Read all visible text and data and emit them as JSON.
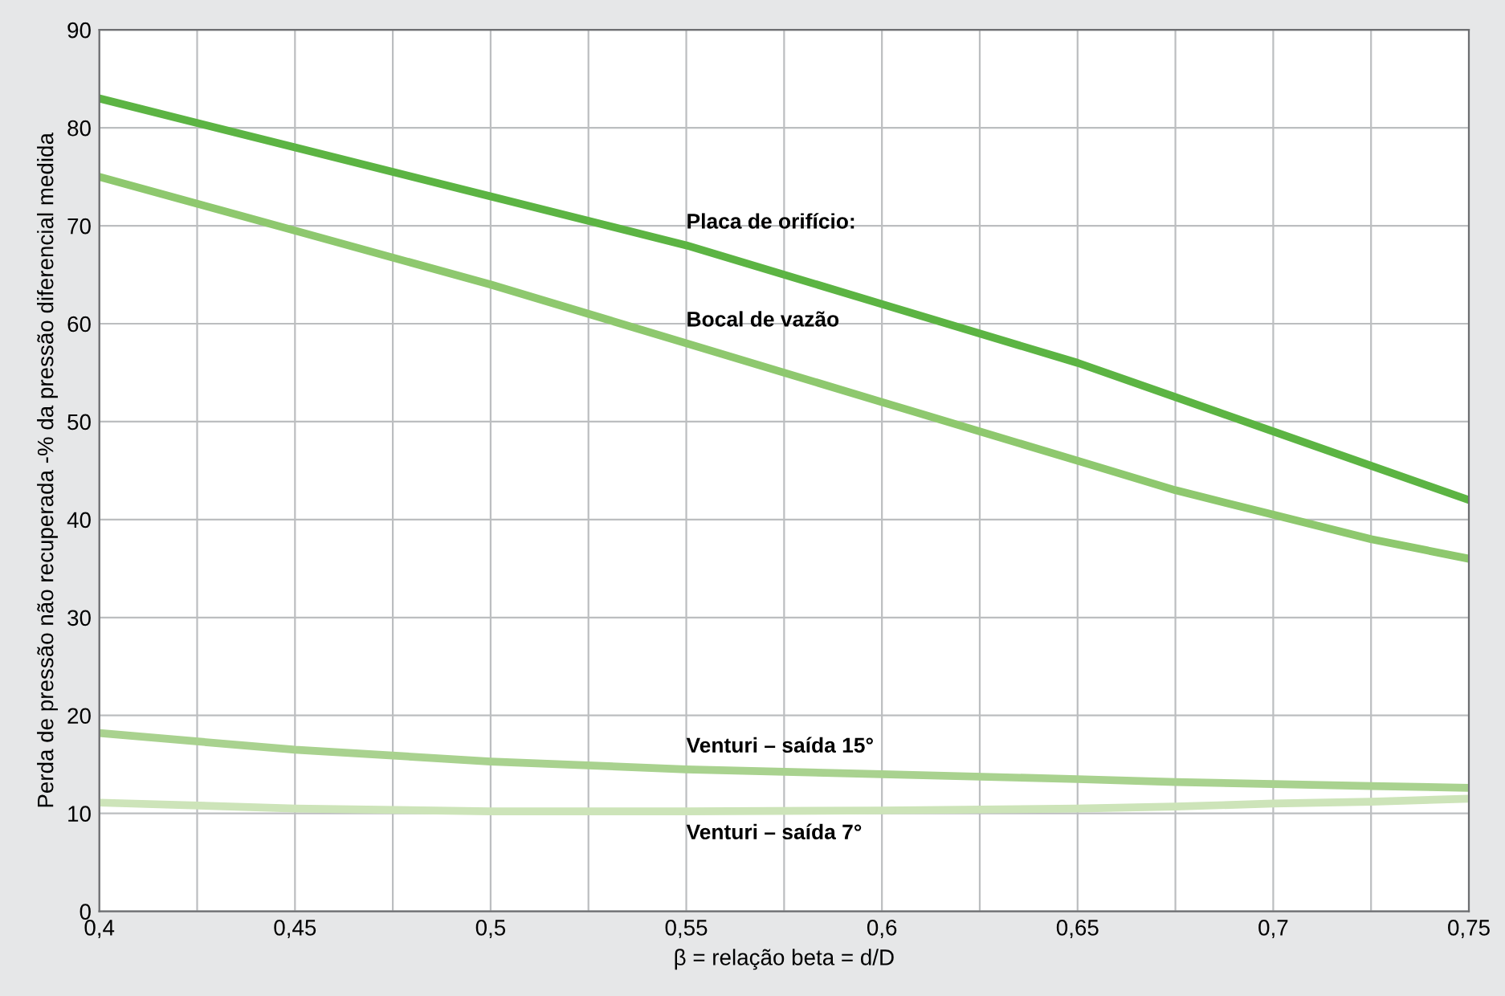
{
  "chart_data": {
    "type": "line",
    "xlabel": "β = relação beta = d/D",
    "ylabel": "Perda de pressão não recuperada -% da pressão diferencial medida",
    "x": [
      0.4,
      0.45,
      0.5,
      0.55,
      0.6,
      0.65,
      0.675,
      0.7,
      0.725,
      0.75
    ],
    "series": [
      {
        "name": "Placa de orifício:",
        "color": "#5cb443",
        "values": [
          83,
          78,
          73,
          68,
          62,
          56,
          52.5,
          49,
          45.5,
          42
        ]
      },
      {
        "name": "Bocal de vazão",
        "color": "#8ec86e",
        "values": [
          75,
          69.5,
          64,
          58,
          52,
          46,
          43,
          40.5,
          38,
          36
        ]
      },
      {
        "name": "Venturi – saída 15°",
        "color": "#a9d28f",
        "values": [
          18.2,
          16.5,
          15.3,
          14.5,
          14,
          13.5,
          13.2,
          13,
          12.8,
          12.6
        ]
      },
      {
        "name": "Venturi – saída 7°",
        "color": "#cde4b9",
        "values": [
          11.1,
          10.5,
          10.2,
          10.2,
          10.3,
          10.5,
          10.7,
          11,
          11.2,
          11.5
        ]
      }
    ],
    "xlim": [
      0.4,
      0.75
    ],
    "xticks": [
      {
        "value": 0.4,
        "label": "0,4"
      },
      {
        "value": 0.425,
        "label": null
      },
      {
        "value": 0.45,
        "label": "0,45"
      },
      {
        "value": 0.475,
        "label": null
      },
      {
        "value": 0.5,
        "label": "0,5"
      },
      {
        "value": 0.525,
        "label": null
      },
      {
        "value": 0.55,
        "label": "0,55"
      },
      {
        "value": 0.575,
        "label": null
      },
      {
        "value": 0.6,
        "label": "0,6"
      },
      {
        "value": 0.625,
        "label": null
      },
      {
        "value": 0.65,
        "label": "0,65"
      },
      {
        "value": 0.675,
        "label": null
      },
      {
        "value": 0.7,
        "label": "0,7"
      },
      {
        "value": 0.725,
        "label": null
      },
      {
        "value": 0.75,
        "label": "0,75"
      }
    ],
    "ylim": [
      0,
      90
    ],
    "yticks": [
      0,
      10,
      20,
      30,
      40,
      50,
      60,
      70,
      80,
      90
    ],
    "grid": true,
    "marker": "none",
    "line_style": "solid"
  }
}
